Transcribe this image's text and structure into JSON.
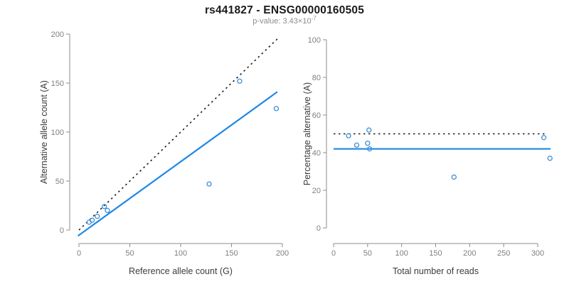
{
  "title": "rs441827 - ENSG00000160505",
  "subtitle": {
    "prefix": "p-value: 3.43×10",
    "exponent": "-7"
  },
  "colors": {
    "accent_blue": "#1E88E5",
    "marker_blue": "#3D8FD9",
    "dotted_black": "#1a1a1a",
    "axis": "#8c8c8c",
    "tick_text": "#7f7f7f",
    "label_text": "#3c3c3c",
    "title_text": "#1a1a1a",
    "subtitle_text": "#8c8c8c"
  },
  "chart_data": [
    {
      "type": "scatter",
      "title": "",
      "xlabel": "Reference allele count (G)",
      "ylabel": "Alternative allele count (A)",
      "xlim": [
        0,
        200
      ],
      "ylim": [
        0,
        200
      ],
      "xticks": [
        0,
        50,
        100,
        150,
        200
      ],
      "yticks": [
        0,
        50,
        100,
        150,
        200
      ],
      "grid": false,
      "legend": "none",
      "marker": {
        "shape": "open-circle",
        "color": "#3D8FD9"
      },
      "points": [
        [
          10,
          8
        ],
        [
          13,
          10
        ],
        [
          18,
          14
        ],
        [
          25,
          24
        ],
        [
          28,
          20
        ],
        [
          128,
          47
        ],
        [
          158,
          152
        ],
        [
          194,
          124
        ]
      ],
      "lines": [
        {
          "name": "identity-line",
          "style": "dotted",
          "color": "#1a1a1a",
          "width": 1.6,
          "from": [
            0,
            0
          ],
          "to": [
            195,
            195
          ]
        },
        {
          "name": "fit-line",
          "style": "solid",
          "color": "#1E88E5",
          "width": 2.2,
          "from": [
            -1,
            -6
          ],
          "to": [
            195,
            141
          ]
        }
      ]
    },
    {
      "type": "scatter",
      "title": "",
      "xlabel": "Total number of reads",
      "ylabel": "Percentage alternative (A)",
      "xlim": [
        0,
        300
      ],
      "ylim": [
        0,
        100
      ],
      "xticks": [
        0,
        50,
        100,
        150,
        200,
        250,
        300
      ],
      "yticks": [
        0,
        20,
        40,
        60,
        80,
        100
      ],
      "grid": false,
      "legend": "none",
      "marker": {
        "shape": "open-circle",
        "color": "#3D8FD9"
      },
      "points": [
        [
          22,
          49
        ],
        [
          34,
          44
        ],
        [
          50,
          45
        ],
        [
          52,
          52
        ],
        [
          53,
          42
        ],
        [
          177,
          27
        ],
        [
          309,
          48
        ],
        [
          318,
          37
        ]
      ],
      "lines": [
        {
          "name": "expected-line",
          "style": "dotted",
          "color": "#1a1a1a",
          "width": 1.6,
          "from": [
            0,
            50
          ],
          "to": [
            311,
            50
          ]
        },
        {
          "name": "fit-line",
          "style": "solid",
          "color": "#1E88E5",
          "width": 2.2,
          "from": [
            0,
            42
          ],
          "to": [
            319,
            42
          ]
        }
      ]
    }
  ]
}
